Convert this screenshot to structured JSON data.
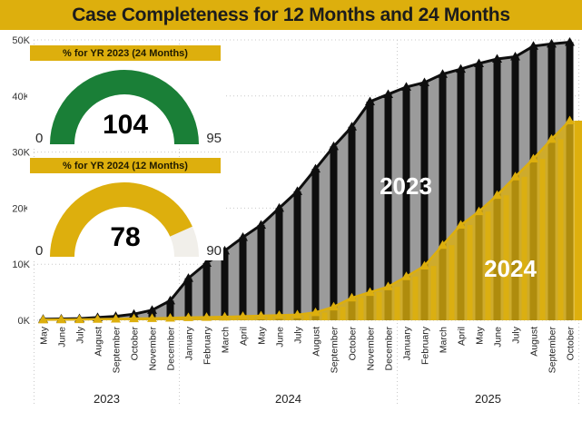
{
  "title": "Case Completeness for 12 Months and 24 Months",
  "colors": {
    "accent_gold": "#DDAF0D",
    "gauge_green": "#1A7F37",
    "gauge_track": "#F1EFEA",
    "series_2023_line": "#0E0E0E",
    "series_2023_area": "#9B9B9B",
    "series_2024": "#DDAF0D",
    "gridline": "#C9C9C9",
    "axis_text": "#333333",
    "title_text": "#1C1C1C",
    "in_chart_label_text": "#FFFFFF"
  },
  "gauges": [
    {
      "header": "% for YR 2023 (24 Months)",
      "value": "104",
      "min": "0",
      "max": "95",
      "fill": "#1A7F37"
    },
    {
      "header": "% for YR 2024 (12 Months)",
      "value": "78",
      "min": "0",
      "max": "90",
      "fill": "#DDAF0D"
    }
  ],
  "chart_data": {
    "type": "area",
    "title": "",
    "values_unit": "thousands (K)",
    "ylim": [
      0,
      50
    ],
    "y_ticks": [
      "0K",
      "10K",
      "20K",
      "30K",
      "40K",
      "50K"
    ],
    "grid": "dotted horizontal lines at each 10K; dotted vertical separators at year-group boundaries",
    "legend_position": "labels drawn inside chart area",
    "x": [
      "May",
      "June",
      "July",
      "August",
      "September",
      "October",
      "November",
      "December",
      "January",
      "February",
      "March",
      "April",
      "May",
      "June",
      "July",
      "August",
      "September",
      "October",
      "November",
      "December",
      "January",
      "February",
      "March",
      "April",
      "May",
      "June",
      "July",
      "August",
      "September",
      "October"
    ],
    "year_groups": [
      {
        "label": "2023",
        "months": 8
      },
      {
        "label": "2024",
        "months": 12
      },
      {
        "label": "2025",
        "months": 10
      }
    ],
    "series": [
      {
        "name": "2023",
        "values": [
          0.2,
          0.25,
          0.3,
          0.5,
          0.7,
          1.1,
          1.8,
          3.5,
          7.5,
          10.2,
          12.4,
          14.8,
          17.0,
          20.0,
          23.0,
          27.0,
          31.0,
          34.5,
          39.0,
          40.3,
          41.6,
          42.4,
          43.9,
          44.8,
          45.8,
          46.6,
          47.0,
          48.9,
          49.3,
          49.6
        ]
      },
      {
        "name": "2024",
        "values": [
          0.1,
          0.12,
          0.15,
          0.2,
          0.25,
          0.3,
          0.35,
          0.4,
          0.5,
          0.55,
          0.6,
          0.7,
          0.8,
          0.9,
          1.0,
          1.4,
          2.4,
          4.0,
          5.0,
          6.0,
          7.8,
          9.7,
          13.4,
          17.0,
          19.4,
          22.3,
          25.6,
          28.8,
          32.3,
          35.6
        ]
      }
    ]
  }
}
